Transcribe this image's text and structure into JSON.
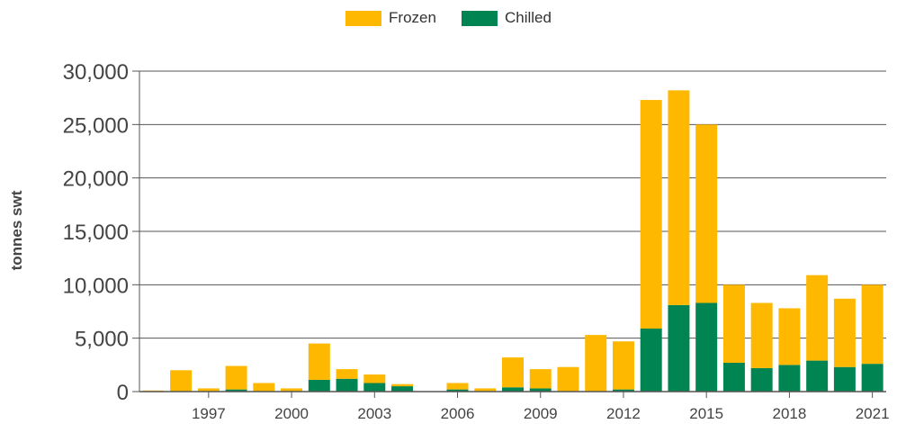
{
  "chart_data": {
    "type": "bar",
    "stacked": true,
    "ylabel": "tonnes swt",
    "ylim": [
      0,
      30000
    ],
    "yticks": [
      "0",
      "5,000",
      "10,000",
      "15,000",
      "20,000",
      "25,000",
      "30,000"
    ],
    "ytick_values": [
      0,
      5000,
      10000,
      15000,
      20000,
      25000,
      30000
    ],
    "categories": [
      "1995",
      "1996",
      "1997",
      "1998",
      "1999",
      "2000",
      "2001",
      "2002",
      "2003",
      "2004",
      "2005",
      "2006",
      "2007",
      "2008",
      "2009",
      "2010",
      "2011",
      "2012",
      "2013",
      "2014",
      "2015",
      "2016",
      "2017",
      "2018",
      "2019",
      "2020",
      "2021"
    ],
    "xtick_labels": [
      "1997",
      "2000",
      "2003",
      "2006",
      "2009",
      "2012",
      "2015",
      "2018",
      "2021"
    ],
    "legend_position": "top-center",
    "grid": "horizontal",
    "series": [
      {
        "name": "Chilled",
        "color": "#008452",
        "values": [
          0,
          0,
          0,
          200,
          0,
          0,
          1100,
          1200,
          800,
          500,
          0,
          200,
          0,
          400,
          300,
          0,
          0,
          200,
          5900,
          8100,
          8300,
          2700,
          2200,
          2500,
          2900,
          2300,
          2600
        ]
      },
      {
        "name": "Frozen",
        "color": "#ffb800",
        "values": [
          100,
          2000,
          300,
          2200,
          800,
          300,
          3400,
          900,
          800,
          200,
          0,
          600,
          300,
          2800,
          1800,
          2300,
          5300,
          4500,
          21400,
          20100,
          16700,
          7300,
          6100,
          5300,
          8000,
          6400,
          7400
        ]
      }
    ],
    "legend_order": [
      "Frozen",
      "Chilled"
    ]
  }
}
